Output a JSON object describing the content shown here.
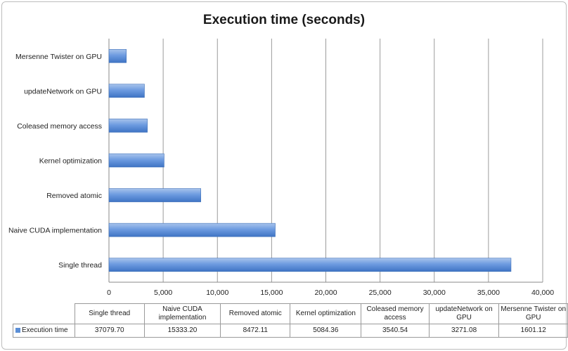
{
  "chart_data": {
    "type": "bar",
    "orientation": "horizontal",
    "title": "Execution time (seconds)",
    "categories": [
      "Single thread",
      "Naive CUDA implementation",
      "Removed atomic",
      "Kernel optimization",
      "Coleased memory access",
      "updateNetwork on GPU",
      "Mersenne Twister on GPU"
    ],
    "series": [
      {
        "name": "Execution time",
        "values": [
          37079.7,
          15333.2,
          8472.11,
          5084.36,
          3540.54,
          3271.08,
          1601.12
        ],
        "color": "#5b8fd6"
      }
    ],
    "xlim": [
      0,
      40000
    ],
    "x_ticks": [
      "0",
      "5,000",
      "10,000",
      "15,000",
      "20,000",
      "25,000",
      "30,000",
      "35,000",
      "40,000"
    ],
    "grid": true,
    "legend_placement": "data-table",
    "table": {
      "headers": [
        "Single thread",
        "Naive CUDA implementation",
        "Removed atomic",
        "Kernel optimization",
        "Coleased memory access",
        "updateNetwork on GPU",
        "Mersenne Twister on GPU"
      ],
      "row_label": "Execution time",
      "values": [
        "37079.70",
        "15333.20",
        "8472.11",
        "5084.36",
        "3540.54",
        "3271.08",
        "1601.12"
      ]
    }
  }
}
